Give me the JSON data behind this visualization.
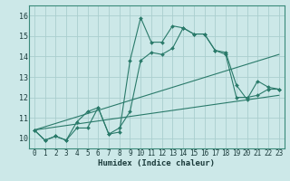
{
  "xlabel": "Humidex (Indice chaleur)",
  "bg_color": "#cce8e8",
  "line_color": "#2a7a6a",
  "grid_color": "#aacece",
  "xlim": [
    -0.5,
    23.5
  ],
  "ylim": [
    9.5,
    16.5
  ],
  "xticks": [
    0,
    1,
    2,
    3,
    4,
    5,
    6,
    7,
    8,
    9,
    10,
    11,
    12,
    13,
    14,
    15,
    16,
    17,
    18,
    19,
    20,
    21,
    22,
    23
  ],
  "yticks": [
    10,
    11,
    12,
    13,
    14,
    15,
    16
  ],
  "lines": [
    {
      "x": [
        0,
        1,
        2,
        3,
        4,
        5,
        6,
        7,
        8,
        9,
        10,
        11,
        12,
        13,
        14,
        15,
        16,
        17,
        18,
        19,
        20,
        21,
        22,
        23
      ],
      "y": [
        10.4,
        9.9,
        10.1,
        9.9,
        10.8,
        11.3,
        11.5,
        10.2,
        10.3,
        13.8,
        15.9,
        14.7,
        14.7,
        15.5,
        15.4,
        15.1,
        15.1,
        14.3,
        14.2,
        12.6,
        11.9,
        12.8,
        12.5,
        12.4
      ],
      "markers": true
    },
    {
      "x": [
        0,
        1,
        2,
        3,
        4,
        5,
        6,
        7,
        8,
        9,
        10,
        11,
        12,
        13,
        14,
        15,
        16,
        17,
        18,
        19,
        20,
        21,
        22,
        23
      ],
      "y": [
        10.4,
        9.9,
        10.1,
        9.9,
        10.5,
        10.5,
        11.5,
        10.2,
        10.5,
        11.3,
        13.8,
        14.2,
        14.1,
        14.4,
        15.4,
        15.1,
        15.1,
        14.3,
        14.1,
        12.0,
        12.0,
        12.1,
        12.4,
        12.4
      ],
      "markers": true
    },
    {
      "x": [
        0,
        23
      ],
      "y": [
        10.4,
        14.1
      ],
      "markers": false
    },
    {
      "x": [
        0,
        23
      ],
      "y": [
        10.4,
        12.1
      ],
      "markers": false
    }
  ],
  "tick_fontsize": 5.5,
  "xlabel_fontsize": 6.5
}
